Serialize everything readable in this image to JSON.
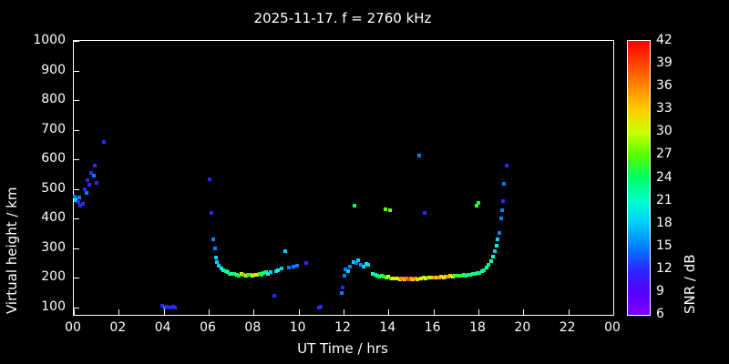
{
  "chart_data": {
    "type": "scatter",
    "title": "2025-11-17. f = 2760 kHz",
    "xlabel": "UT Time / hrs",
    "ylabel": "Virtual height / km",
    "xlim": [
      0,
      24
    ],
    "ylim": [
      75,
      1000
    ],
    "xtick_values": [
      0,
      2,
      4,
      6,
      8,
      10,
      12,
      14,
      16,
      18,
      20,
      22,
      24
    ],
    "xtick_labels": [
      "00",
      "02",
      "04",
      "06",
      "08",
      "10",
      "12",
      "14",
      "16",
      "18",
      "20",
      "22",
      "00"
    ],
    "ytick_values": [
      100,
      200,
      300,
      400,
      500,
      600,
      700,
      800,
      900,
      1000
    ],
    "background": "#000000",
    "axis_color": "#ffffff",
    "grid": false,
    "colorbar": {
      "label": "SNR / dB",
      "min": 6,
      "max": 42,
      "ticks": [
        6,
        9,
        12,
        15,
        18,
        21,
        24,
        27,
        30,
        33,
        36,
        39,
        42
      ],
      "stops": [
        {
          "v": 6,
          "c": "#7f00ff"
        },
        {
          "v": 9,
          "c": "#5500ff"
        },
        {
          "v": 12,
          "c": "#2a2aff"
        },
        {
          "v": 15,
          "c": "#0080ff"
        },
        {
          "v": 18,
          "c": "#00ccff"
        },
        {
          "v": 21,
          "c": "#00ffcc"
        },
        {
          "v": 24,
          "c": "#00ff66"
        },
        {
          "v": 27,
          "c": "#55ff00"
        },
        {
          "v": 30,
          "c": "#ccff00"
        },
        {
          "v": 33,
          "c": "#ffcc00"
        },
        {
          "v": 36,
          "c": "#ff8800"
        },
        {
          "v": 39,
          "c": "#ff4400"
        },
        {
          "v": 42,
          "c": "#ff0000"
        }
      ]
    },
    "points": [
      [
        0.05,
        475,
        15
      ],
      [
        0.1,
        462,
        18
      ],
      [
        0.2,
        455,
        12
      ],
      [
        0.25,
        470,
        15
      ],
      [
        0.3,
        445,
        12
      ],
      [
        0.4,
        450,
        12
      ],
      [
        0.5,
        498,
        12
      ],
      [
        0.55,
        488,
        15
      ],
      [
        0.62,
        530,
        12
      ],
      [
        0.7,
        515,
        12
      ],
      [
        0.78,
        555,
        12
      ],
      [
        0.88,
        545,
        15
      ],
      [
        0.95,
        578,
        12
      ],
      [
        1.02,
        520,
        12
      ],
      [
        1.35,
        660,
        12
      ],
      [
        3.95,
        105,
        12
      ],
      [
        4.05,
        100,
        15
      ],
      [
        4.15,
        103,
        12
      ],
      [
        4.3,
        100,
        12
      ],
      [
        4.4,
        104,
        12
      ],
      [
        4.5,
        100,
        12
      ],
      [
        6.05,
        532,
        12
      ],
      [
        6.12,
        420,
        12
      ],
      [
        6.2,
        330,
        15
      ],
      [
        6.28,
        298,
        15
      ],
      [
        6.32,
        268,
        18
      ],
      [
        6.38,
        252,
        18
      ],
      [
        6.45,
        240,
        18
      ],
      [
        6.55,
        232,
        21
      ],
      [
        6.65,
        227,
        21
      ],
      [
        6.75,
        222,
        24
      ],
      [
        6.85,
        218,
        21
      ],
      [
        6.95,
        214,
        24
      ],
      [
        7.05,
        212,
        21
      ],
      [
        7.15,
        214,
        24
      ],
      [
        7.25,
        210,
        27
      ],
      [
        7.35,
        208,
        24
      ],
      [
        7.45,
        212,
        30
      ],
      [
        7.55,
        209,
        27
      ],
      [
        7.65,
        207,
        33
      ],
      [
        7.75,
        211,
        27
      ],
      [
        7.85,
        209,
        24
      ],
      [
        7.95,
        207,
        30
      ],
      [
        8.05,
        211,
        33
      ],
      [
        8.15,
        209,
        30
      ],
      [
        8.25,
        214,
        27
      ],
      [
        8.35,
        211,
        24
      ],
      [
        8.45,
        215,
        21
      ],
      [
        8.55,
        218,
        24
      ],
      [
        8.65,
        214,
        21
      ],
      [
        8.75,
        219,
        18
      ],
      [
        8.9,
        140,
        12
      ],
      [
        9.0,
        222,
        18
      ],
      [
        9.1,
        227,
        21
      ],
      [
        9.25,
        231,
        18
      ],
      [
        9.4,
        290,
        18
      ],
      [
        9.55,
        234,
        15
      ],
      [
        9.75,
        239,
        15
      ],
      [
        9.95,
        241,
        15
      ],
      [
        10.35,
        250,
        12
      ],
      [
        10.9,
        100,
        12
      ],
      [
        11.0,
        104,
        12
      ],
      [
        11.9,
        150,
        15
      ],
      [
        11.95,
        168,
        12
      ],
      [
        12.05,
        208,
        15
      ],
      [
        12.1,
        228,
        15
      ],
      [
        12.2,
        224,
        18
      ],
      [
        12.3,
        238,
        15
      ],
      [
        12.45,
        253,
        18
      ],
      [
        12.5,
        445,
        24
      ],
      [
        12.55,
        249,
        15
      ],
      [
        12.65,
        260,
        18
      ],
      [
        12.78,
        244,
        15
      ],
      [
        12.9,
        239,
        18
      ],
      [
        13.0,
        248,
        21
      ],
      [
        13.1,
        244,
        18
      ],
      [
        13.85,
        433,
        27
      ],
      [
        14.05,
        428,
        27
      ],
      [
        15.35,
        612,
        15
      ],
      [
        15.6,
        420,
        12
      ],
      [
        17.9,
        443,
        27
      ],
      [
        18.02,
        452,
        24
      ],
      [
        13.3,
        214,
        21
      ],
      [
        13.4,
        209,
        24
      ],
      [
        13.5,
        207,
        21
      ],
      [
        13.6,
        204,
        24
      ],
      [
        13.7,
        206,
        27
      ],
      [
        13.8,
        204,
        24
      ],
      [
        13.9,
        202,
        27
      ],
      [
        14.0,
        204,
        30
      ],
      [
        14.1,
        199,
        27
      ],
      [
        14.2,
        197,
        30
      ],
      [
        14.3,
        199,
        33
      ],
      [
        14.4,
        197,
        30
      ],
      [
        14.5,
        195,
        33
      ],
      [
        14.6,
        197,
        36
      ],
      [
        14.7,
        195,
        33
      ],
      [
        14.8,
        197,
        36
      ],
      [
        14.9,
        195,
        39
      ],
      [
        15.0,
        197,
        36
      ],
      [
        15.1,
        195,
        33
      ],
      [
        15.2,
        197,
        36
      ],
      [
        15.3,
        195,
        33
      ],
      [
        15.45,
        198,
        30
      ],
      [
        15.55,
        200,
        33
      ],
      [
        15.65,
        198,
        30
      ],
      [
        15.75,
        200,
        27
      ],
      [
        15.85,
        202,
        30
      ],
      [
        15.95,
        200,
        33
      ],
      [
        16.05,
        202,
        36
      ],
      [
        16.15,
        200,
        33
      ],
      [
        16.25,
        202,
        36
      ],
      [
        16.35,
        204,
        33
      ],
      [
        16.45,
        202,
        30
      ],
      [
        16.55,
        205,
        33
      ],
      [
        16.65,
        204,
        36
      ],
      [
        16.75,
        206,
        33
      ],
      [
        16.85,
        205,
        30
      ],
      [
        16.95,
        207,
        27
      ],
      [
        17.05,
        206,
        24
      ],
      [
        17.15,
        208,
        27
      ],
      [
        17.25,
        207,
        24
      ],
      [
        17.35,
        209,
        27
      ],
      [
        17.45,
        208,
        24
      ],
      [
        17.55,
        210,
        21
      ],
      [
        17.65,
        210,
        24
      ],
      [
        17.75,
        212,
        21
      ],
      [
        17.85,
        213,
        24
      ],
      [
        17.95,
        215,
        21
      ],
      [
        18.05,
        217,
        24
      ],
      [
        18.15,
        221,
        21
      ],
      [
        18.25,
        227,
        24
      ],
      [
        18.35,
        234,
        21
      ],
      [
        18.45,
        244,
        24
      ],
      [
        18.55,
        257,
        21
      ],
      [
        18.65,
        271,
        21
      ],
      [
        18.72,
        289,
        18
      ],
      [
        18.8,
        309,
        21
      ],
      [
        18.87,
        329,
        18
      ],
      [
        18.93,
        353,
        15
      ],
      [
        19.0,
        400,
        15
      ],
      [
        19.05,
        428,
        15
      ],
      [
        19.1,
        458,
        12
      ],
      [
        19.15,
        518,
        15
      ],
      [
        19.25,
        578,
        12
      ]
    ]
  }
}
